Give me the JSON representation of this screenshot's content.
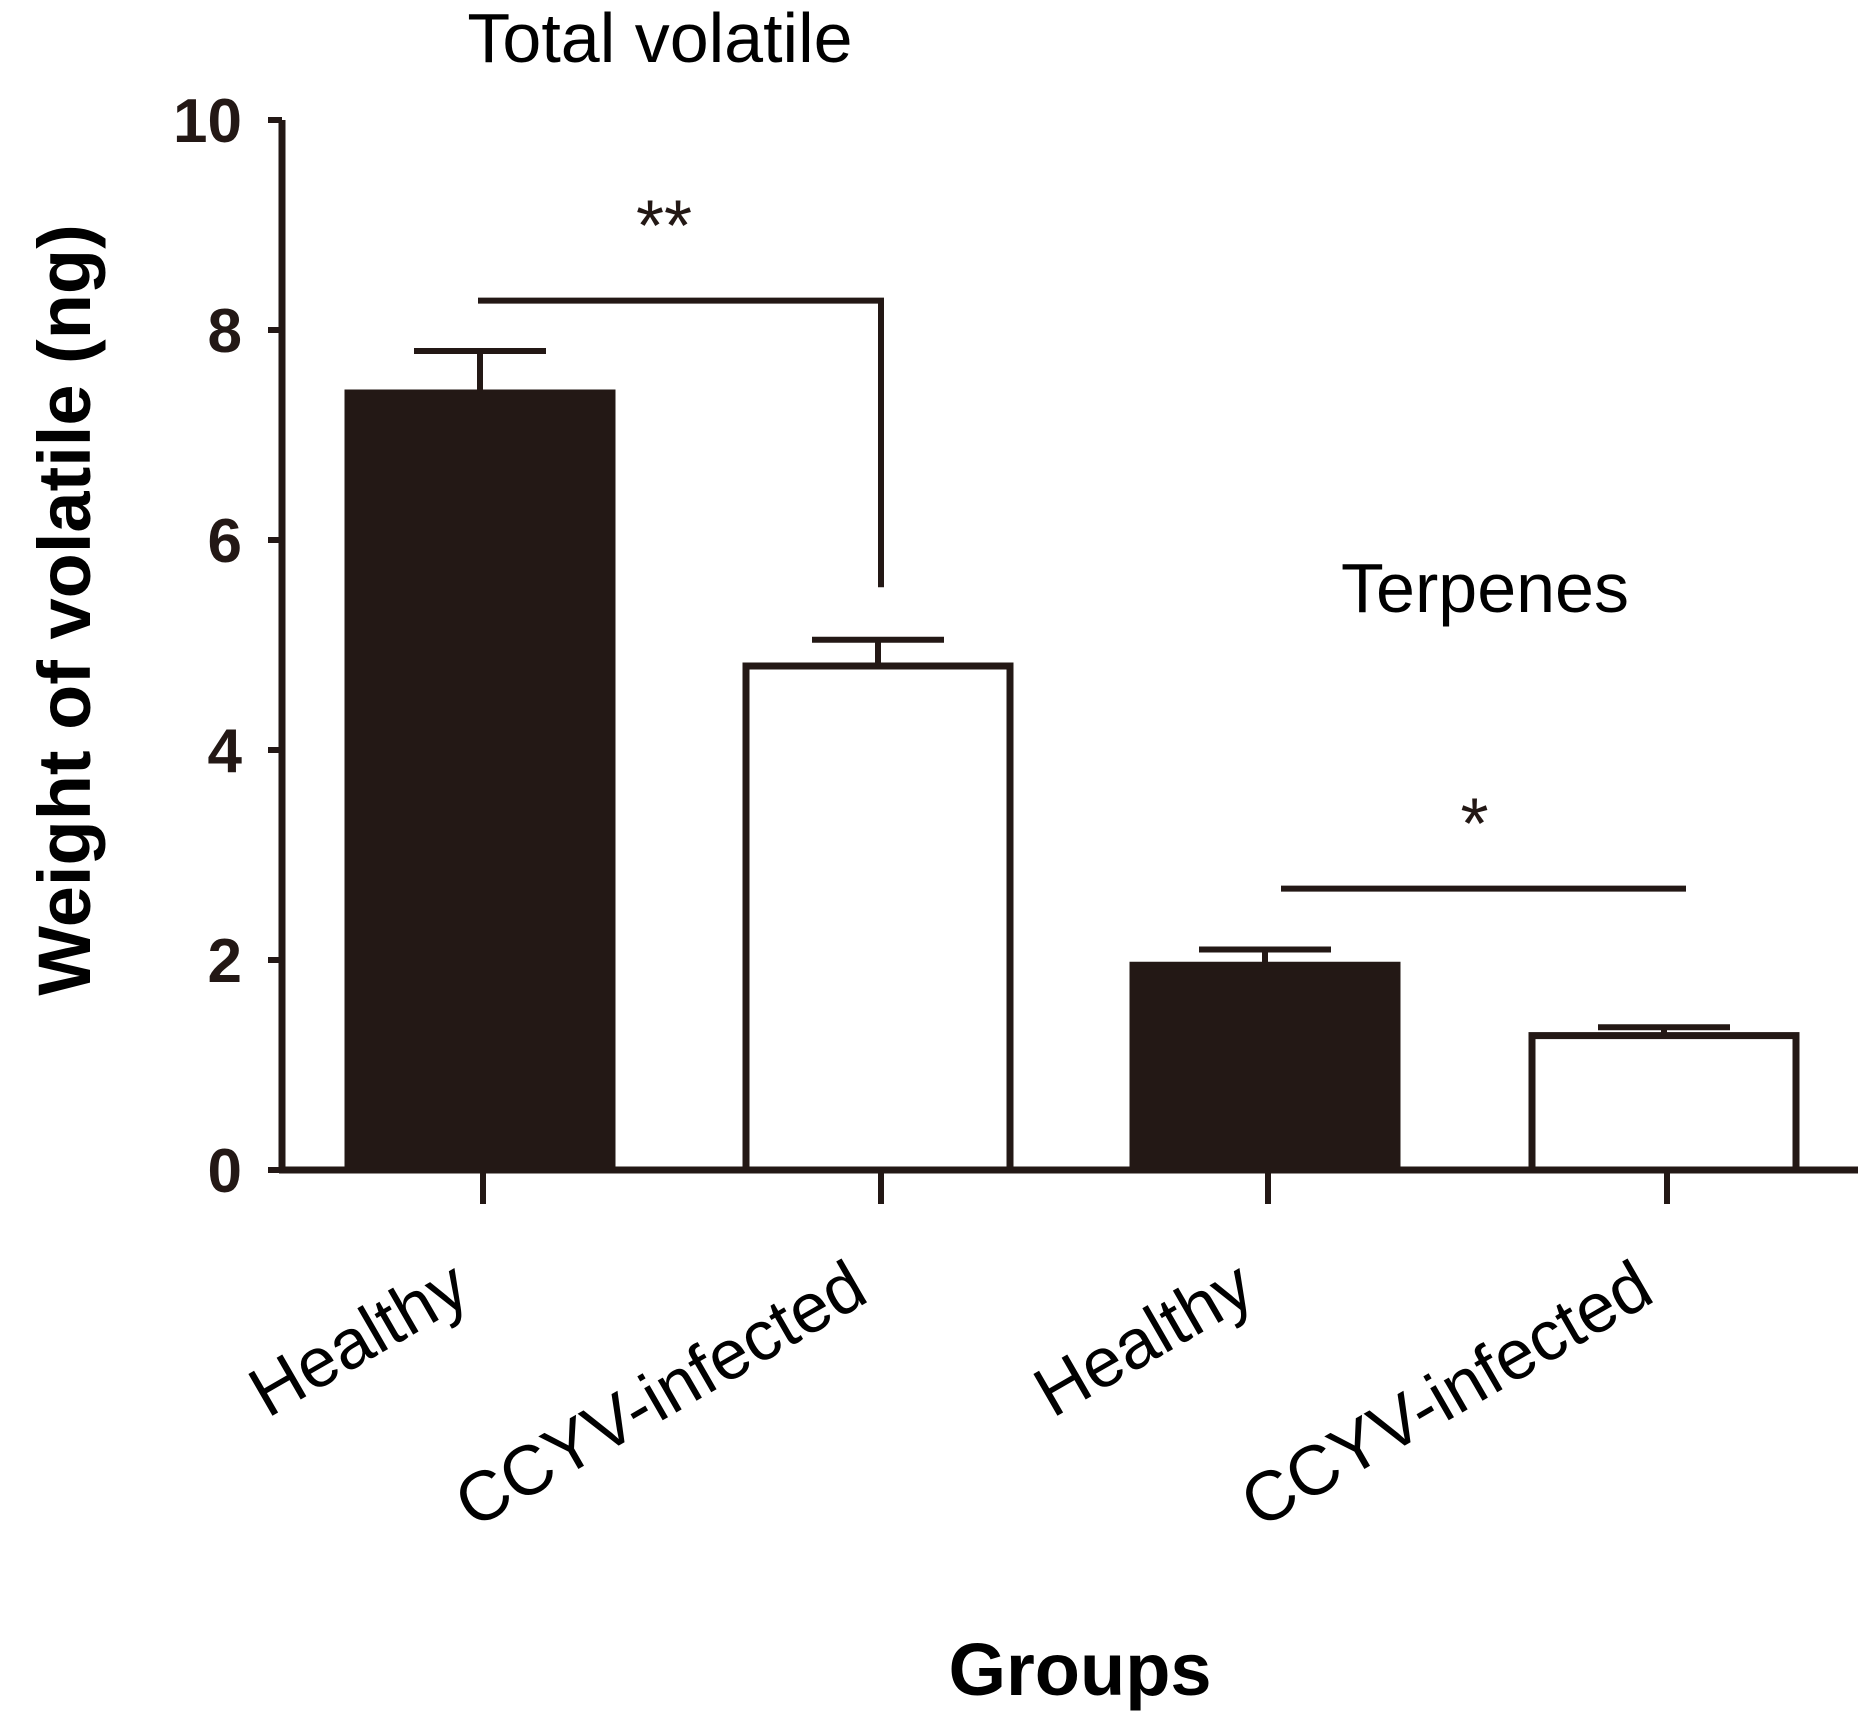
{
  "chart_data": {
    "type": "bar",
    "title": "",
    "xlabel": "Groups",
    "ylabel": "Weight of volatile (ng)",
    "ylim": [
      0,
      10
    ],
    "yticks": [
      "0",
      "2",
      "4",
      "6",
      "8",
      "10"
    ],
    "categories": [
      "Healthy",
      "CCYV-infected",
      "Healthy",
      "CCYV-infected"
    ],
    "values": [
      7.4,
      4.8,
      1.95,
      1.28
    ],
    "errors": [
      0.4,
      0.25,
      0.15,
      0.08
    ],
    "bar_fill": [
      "#231815",
      "#ffffff",
      "#231815",
      "#ffffff"
    ],
    "groups": [
      {
        "label": "Total volatile",
        "bars": [
          0,
          1
        ]
      },
      {
        "label": "Terpenes",
        "bars": [
          2,
          3
        ]
      }
    ],
    "significance": [
      {
        "label": "**",
        "bars": [
          0,
          1
        ],
        "line_y": 8.28
      },
      {
        "label": "*",
        "bars": [
          2,
          3
        ],
        "line_y": 2.68
      }
    ]
  },
  "colors": {
    "axis": "#231815",
    "dark_bar": "#231815",
    "light_bar": "#ffffff"
  }
}
